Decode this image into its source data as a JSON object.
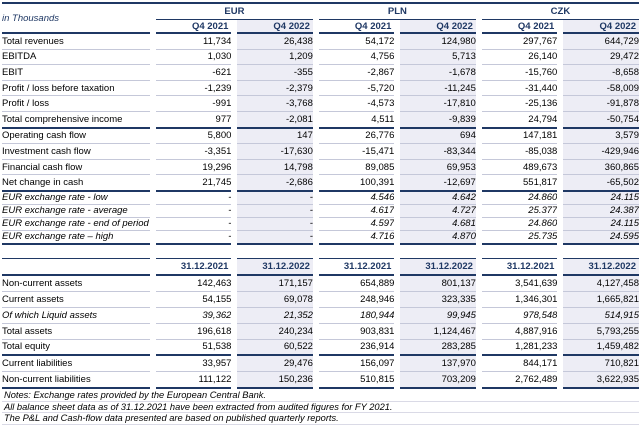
{
  "colors": {
    "accent": "#1f3864",
    "column_shade": "#ededf5",
    "row_line": "#c5c8d9"
  },
  "unit_label": "in Thousands",
  "pnl_table": {
    "currency_groups": [
      "EUR",
      "PLN",
      "CZK"
    ],
    "period_headers": [
      "Q4 2021",
      "Q4 2022"
    ],
    "rows": [
      {
        "label": "Total revenues",
        "values": [
          "11,734",
          "26,438",
          "54,172",
          "124,980",
          "297,767",
          "644,729"
        ]
      },
      {
        "label": "EBITDA",
        "values": [
          "1,030",
          "1,209",
          "4,756",
          "5,713",
          "26,140",
          "29,472"
        ]
      },
      {
        "label": "EBIT",
        "values": [
          "-621",
          "-355",
          "-2,867",
          "-1,678",
          "-15,760",
          "-8,658"
        ]
      },
      {
        "label": "Profit / loss before taxation",
        "values": [
          "-1,239",
          "-2,379",
          "-5,720",
          "-11,245",
          "-31,440",
          "-58,009"
        ]
      },
      {
        "label": "Profit / loss",
        "values": [
          "-991",
          "-3,768",
          "-4,573",
          "-17,810",
          "-25,136",
          "-91,878"
        ]
      },
      {
        "label": "Total comprehensive income",
        "values": [
          "977",
          "-2,081",
          "4,511",
          "-9,839",
          "24,794",
          "-50,754"
        ],
        "section_end": true
      },
      {
        "label": "Operating cash flow",
        "values": [
          "5,800",
          "147",
          "26,776",
          "694",
          "147,181",
          "3,579"
        ]
      },
      {
        "label": "Investment cash flow",
        "values": [
          "-3,351",
          "-17,630",
          "-15,471",
          "-83,344",
          "-85,038",
          "-429,946"
        ]
      },
      {
        "label": "Financial cash flow",
        "values": [
          "19,296",
          "14,798",
          "89,085",
          "69,953",
          "489,673",
          "360,865"
        ]
      },
      {
        "label": "Net change in cash",
        "values": [
          "21,745",
          "-2,686",
          "100,391",
          "-12,697",
          "551,817",
          "-65,502"
        ],
        "section_end": true
      },
      {
        "label": "EUR exchange rate - low",
        "values": [
          "-",
          "-",
          "4.546",
          "4.642",
          "24.860",
          "24.115"
        ],
        "italic": true
      },
      {
        "label": "EUR exchange rate - average",
        "values": [
          "-",
          "-",
          "4.617",
          "4.727",
          "25.377",
          "24.387"
        ],
        "italic": true
      },
      {
        "label": "EUR exchange rate - end of period",
        "values": [
          "-",
          "-",
          "4.597",
          "4.681",
          "24.860",
          "24.115"
        ],
        "italic": true
      },
      {
        "label": "EUR exchange rate – high",
        "values": [
          "-",
          "-",
          "4.716",
          "4.870",
          "25.735",
          "24.595"
        ],
        "italic": true,
        "section_end": true
      }
    ]
  },
  "balance_table": {
    "period_headers": [
      "31.12.2021",
      "31.12.2022"
    ],
    "rows": [
      {
        "label": "Non-current assets",
        "values": [
          "142,463",
          "171,157",
          "654,889",
          "801,137",
          "3,541,639",
          "4,127,458"
        ]
      },
      {
        "label": "Current assets",
        "values": [
          "54,155",
          "69,078",
          "248,946",
          "323,335",
          "1,346,301",
          "1,665,821"
        ]
      },
      {
        "label": "Of which Liquid assets",
        "values": [
          "39,362",
          "21,352",
          "180,944",
          "99,945",
          "978,548",
          "514,915"
        ],
        "indent": true,
        "italic": true
      },
      {
        "label": "Total assets",
        "values": [
          "196,618",
          "240,234",
          "903,831",
          "1,124,467",
          "4,887,916",
          "5,793,255"
        ]
      },
      {
        "label": "Total equity",
        "values": [
          "51,538",
          "60,522",
          "236,914",
          "283,285",
          "1,281,233",
          "1,459,482"
        ],
        "section_end": true
      },
      {
        "label": "Current liabilities",
        "values": [
          "33,957",
          "29,476",
          "156,097",
          "137,970",
          "844,171",
          "710,821"
        ]
      },
      {
        "label": "Non-current liabilities",
        "values": [
          "111,122",
          "150,236",
          "510,815",
          "703,209",
          "2,762,489",
          "3,622,935"
        ],
        "section_end": true
      }
    ]
  },
  "notes": [
    "Notes: Exchange rates provided by the European Central Bank.",
    "All balance sheet data as of 31.12.2021 have been extracted from audited figures for FY 2021.",
    "The P&L and Cash-flow data presented are based on published quarterly reports."
  ]
}
